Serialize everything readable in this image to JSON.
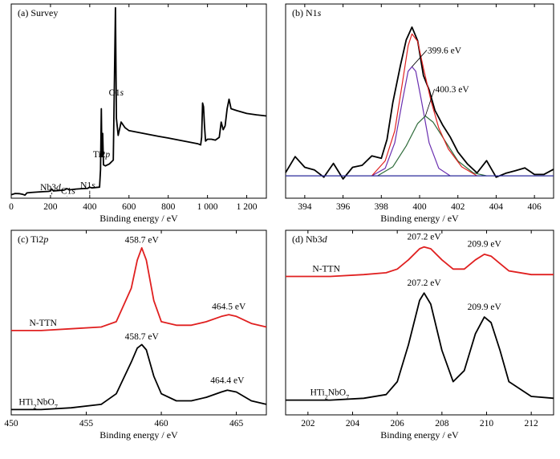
{
  "chart_data": [
    {
      "type": "line",
      "title": "(a) Survey",
      "xlabel": "Binding energy / eV",
      "xlim": [
        0,
        1300
      ],
      "xticks": [
        {
          "value": 0,
          "label": "0"
        },
        {
          "value": 200,
          "label": "200"
        },
        {
          "value": 400,
          "label": "400"
        },
        {
          "value": 600,
          "label": "600"
        },
        {
          "value": 800,
          "label": "800"
        },
        {
          "value": 1000,
          "label": "1 000"
        },
        {
          "value": 1200,
          "label": "1 200"
        }
      ],
      "annotations": [
        {
          "text": "O1s",
          "x": 531,
          "label_x": 535,
          "label_y": 540
        },
        {
          "text": "Ti2p",
          "x": 459,
          "label_x": 460,
          "label_y": 215
        },
        {
          "text": "Nb3d",
          "x": 207,
          "label_x": 200,
          "label_y": 42,
          "arrow_to_y": 20
        },
        {
          "text": "C1s",
          "x": 285,
          "label_x": 290,
          "label_y": 24,
          "arrow_to_y": 9
        },
        {
          "text": "N1s",
          "x": 400,
          "label_x": 390,
          "label_y": 52,
          "arrow_to_y": 20
        }
      ],
      "series": [
        {
          "color": "#000000",
          "points": [
            [
              0,
              18
            ],
            [
              20,
              25
            ],
            [
              40,
              24
            ],
            [
              60,
              20
            ],
            [
              70,
              16
            ],
            [
              80,
              28
            ],
            [
              100,
              30
            ],
            [
              130,
              32
            ],
            [
              160,
              34
            ],
            [
              190,
              36
            ],
            [
              200,
              38
            ],
            [
              207,
              48
            ],
            [
              215,
              38
            ],
            [
              240,
              40
            ],
            [
              270,
              43
            ],
            [
              285,
              50
            ],
            [
              295,
              44
            ],
            [
              330,
              48
            ],
            [
              360,
              50
            ],
            [
              390,
              52
            ],
            [
              400,
              58
            ],
            [
              410,
              54
            ],
            [
              430,
              56
            ],
            [
              450,
              58
            ],
            [
              455,
              150
            ],
            [
              459,
              470
            ],
            [
              462,
              220
            ],
            [
              466,
              340
            ],
            [
              470,
              175
            ],
            [
              480,
              170
            ],
            [
              500,
              180
            ],
            [
              520,
              200
            ],
            [
              531,
              1000
            ],
            [
              536,
              420
            ],
            [
              545,
              330
            ],
            [
              560,
              400
            ],
            [
              580,
              370
            ],
            [
              600,
              355
            ],
            [
              650,
              345
            ],
            [
              700,
              335
            ],
            [
              750,
              325
            ],
            [
              800,
              316
            ],
            [
              850,
              306
            ],
            [
              900,
              296
            ],
            [
              950,
              286
            ],
            [
              965,
              280
            ],
            [
              970,
              320
            ],
            [
              975,
              500
            ],
            [
              980,
              480
            ],
            [
              985,
              380
            ],
            [
              990,
              300
            ],
            [
              1000,
              310
            ],
            [
              1020,
              310
            ],
            [
              1040,
              305
            ],
            [
              1060,
              320
            ],
            [
              1070,
              400
            ],
            [
              1080,
              360
            ],
            [
              1090,
              380
            ],
            [
              1100,
              470
            ],
            [
              1110,
              520
            ],
            [
              1120,
              470
            ],
            [
              1150,
              460
            ],
            [
              1200,
              445
            ],
            [
              1250,
              438
            ],
            [
              1300,
              432
            ]
          ]
        }
      ]
    },
    {
      "type": "line",
      "title": "(b) N1s",
      "xlabel": "Binding energy / eV",
      "xlim": [
        393,
        407
      ],
      "ylim": [
        -0.15,
        1.15
      ],
      "xticks": [
        {
          "value": 394,
          "label": "394"
        },
        {
          "value": 396,
          "label": "396"
        },
        {
          "value": 398,
          "label": "398"
        },
        {
          "value": 400,
          "label": "400"
        },
        {
          "value": 402,
          "label": "402"
        },
        {
          "value": 404,
          "label": "404"
        },
        {
          "value": 406,
          "label": "406"
        }
      ],
      "annotations": [
        {
          "text": "399.6 eV",
          "x": 399.6,
          "y": 0.73,
          "label_x": 401.3,
          "label_y": 0.82
        },
        {
          "text": "400.3 eV",
          "x": 400.3,
          "y": 0.4,
          "label_x": 401.7,
          "label_y": 0.56
        }
      ],
      "series": [
        {
          "color": "#000000",
          "points": [
            [
              393,
              0.05
            ],
            [
              393.5,
              0.1
            ],
            [
              394,
              0.02
            ],
            [
              394.5,
              0.08
            ],
            [
              395,
              0.03
            ],
            [
              395.5,
              0.07
            ],
            [
              396,
              0.02
            ],
            [
              396.5,
              0.06
            ],
            [
              397,
              0.05
            ],
            [
              397.5,
              0.1
            ],
            [
              398,
              0.15
            ],
            [
              398.3,
              0.25
            ],
            [
              398.6,
              0.45
            ],
            [
              399,
              0.7
            ],
            [
              399.3,
              0.88
            ],
            [
              399.6,
              1.0
            ],
            [
              399.9,
              0.92
            ],
            [
              400.2,
              0.7
            ],
            [
              400.5,
              0.55
            ],
            [
              400.8,
              0.42
            ],
            [
              401.2,
              0.3
            ],
            [
              401.6,
              0.22
            ],
            [
              402,
              0.15
            ],
            [
              402.5,
              0.1
            ],
            [
              403,
              0.06
            ],
            [
              403.5,
              0.07
            ],
            [
              404,
              0.03
            ],
            [
              404.5,
              0.05
            ],
            [
              405,
              0.02
            ],
            [
              405.5,
              0.04
            ],
            [
              406,
              0.03
            ],
            [
              406.5,
              0.05
            ],
            [
              407,
              0.02
            ]
          ]
        },
        {
          "color": "#6a2fb0",
          "points": [
            [
              397.5,
              0.0
            ],
            [
              398.2,
              0.05
            ],
            [
              398.7,
              0.22
            ],
            [
              399.1,
              0.5
            ],
            [
              399.4,
              0.7
            ],
            [
              399.6,
              0.73
            ],
            [
              399.8,
              0.7
            ],
            [
              400.1,
              0.5
            ],
            [
              400.5,
              0.22
            ],
            [
              401,
              0.05
            ],
            [
              401.6,
              0.0
            ]
          ]
        },
        {
          "color": "#2e6b3a",
          "points": [
            [
              397.8,
              0.0
            ],
            [
              398.6,
              0.06
            ],
            [
              399.3,
              0.2
            ],
            [
              399.9,
              0.35
            ],
            [
              400.3,
              0.4
            ],
            [
              400.7,
              0.36
            ],
            [
              401.3,
              0.24
            ],
            [
              402,
              0.1
            ],
            [
              402.8,
              0.02
            ],
            [
              403.5,
              0.0
            ]
          ]
        },
        {
          "color": "#e02020",
          "points": [
            [
              397.5,
              0.0
            ],
            [
              398.2,
              0.1
            ],
            [
              398.7,
              0.3
            ],
            [
              399.1,
              0.62
            ],
            [
              399.4,
              0.87
            ],
            [
              399.6,
              0.95
            ],
            [
              399.9,
              0.9
            ],
            [
              400.2,
              0.72
            ],
            [
              400.6,
              0.5
            ],
            [
              401,
              0.32
            ],
            [
              401.5,
              0.18
            ],
            [
              402.2,
              0.06
            ],
            [
              403,
              0.0
            ]
          ]
        },
        {
          "color": "#2a2a9a",
          "points": [
            [
              393,
              0.0
            ],
            [
              407,
              0.0
            ]
          ]
        }
      ]
    },
    {
      "type": "line",
      "title": "(c) Ti2p",
      "xlabel": "Binding energy / eV",
      "xlim": [
        450,
        467
      ],
      "xticks": [
        {
          "value": 450,
          "label": "450"
        },
        {
          "value": 455,
          "label": "455"
        },
        {
          "value": 460,
          "label": "460"
        },
        {
          "value": 465,
          "label": "465"
        }
      ],
      "series": [
        {
          "name": "N-TTN",
          "color": "#e02020",
          "label_x": 451.2,
          "points": [
            [
              450,
              0.48
            ],
            [
              452,
              0.48
            ],
            [
              454,
              0.49
            ],
            [
              456,
              0.5
            ],
            [
              457,
              0.53
            ],
            [
              458,
              0.72
            ],
            [
              458.4,
              0.88
            ],
            [
              458.7,
              0.95
            ],
            [
              459,
              0.88
            ],
            [
              459.5,
              0.65
            ],
            [
              460,
              0.53
            ],
            [
              461,
              0.51
            ],
            [
              462,
              0.51
            ],
            [
              463,
              0.53
            ],
            [
              464,
              0.56
            ],
            [
              464.5,
              0.57
            ],
            [
              465,
              0.56
            ],
            [
              466,
              0.52
            ],
            [
              467,
              0.5
            ]
          ]
        },
        {
          "name": "HTi₂NbO₇",
          "color": "#000000",
          "label_x": 450.5,
          "points": [
            [
              450,
              0.03
            ],
            [
              452,
              0.03
            ],
            [
              454,
              0.04
            ],
            [
              456,
              0.06
            ],
            [
              457,
              0.12
            ],
            [
              458,
              0.3
            ],
            [
              458.4,
              0.38
            ],
            [
              458.7,
              0.4
            ],
            [
              459,
              0.37
            ],
            [
              459.5,
              0.22
            ],
            [
              460,
              0.12
            ],
            [
              461,
              0.08
            ],
            [
              462,
              0.08
            ],
            [
              463,
              0.1
            ],
            [
              464,
              0.13
            ],
            [
              464.4,
              0.14
            ],
            [
              465,
              0.13
            ],
            [
              466,
              0.08
            ],
            [
              467,
              0.06
            ]
          ]
        }
      ],
      "annotations": [
        {
          "text": "458.7 eV",
          "x": 458.7,
          "label_y": 0.98
        },
        {
          "text": "464.5 eV",
          "x": 464.5,
          "label_y": 0.6
        },
        {
          "text": "458.7 eV",
          "x": 458.7,
          "label_y": 0.43
        },
        {
          "text": "464.4 eV",
          "x": 464.4,
          "label_y": 0.18
        }
      ]
    },
    {
      "type": "line",
      "title": "(d) Nb3d",
      "xlabel": "Binding energy / eV",
      "xlim": [
        201,
        213
      ],
      "xticks": [
        {
          "value": 202,
          "label": "202"
        },
        {
          "value": 204,
          "label": "204"
        },
        {
          "value": 206,
          "label": "206"
        },
        {
          "value": 208,
          "label": "208"
        },
        {
          "value": 210,
          "label": "210"
        },
        {
          "value": 212,
          "label": "212"
        }
      ],
      "series": [
        {
          "name": "N-TTN",
          "color": "#e02020",
          "label_x": 202.2,
          "points": [
            [
              201,
              0.75
            ],
            [
              203,
              0.75
            ],
            [
              204.5,
              0.76
            ],
            [
              205.5,
              0.77
            ],
            [
              206,
              0.79
            ],
            [
              206.5,
              0.84
            ],
            [
              207,
              0.9
            ],
            [
              207.2,
              0.91
            ],
            [
              207.5,
              0.9
            ],
            [
              208,
              0.84
            ],
            [
              208.5,
              0.79
            ],
            [
              209,
              0.79
            ],
            [
              209.5,
              0.84
            ],
            [
              209.9,
              0.87
            ],
            [
              210.2,
              0.86
            ],
            [
              210.6,
              0.82
            ],
            [
              211,
              0.78
            ],
            [
              212,
              0.76
            ],
            [
              213,
              0.76
            ]
          ]
        },
        {
          "name": "HTi₂NbO₇",
          "color": "#000000",
          "label_x": 202.1,
          "points": [
            [
              201,
              0.08
            ],
            [
              203,
              0.08
            ],
            [
              204.5,
              0.09
            ],
            [
              205.5,
              0.11
            ],
            [
              206,
              0.18
            ],
            [
              206.5,
              0.38
            ],
            [
              207,
              0.62
            ],
            [
              207.2,
              0.66
            ],
            [
              207.5,
              0.6
            ],
            [
              208,
              0.35
            ],
            [
              208.5,
              0.18
            ],
            [
              209,
              0.24
            ],
            [
              209.5,
              0.44
            ],
            [
              209.9,
              0.53
            ],
            [
              210.2,
              0.5
            ],
            [
              210.6,
              0.35
            ],
            [
              211,
              0.18
            ],
            [
              212,
              0.1
            ],
            [
              213,
              0.09
            ]
          ]
        }
      ],
      "annotations": [
        {
          "text": "207.2 eV",
          "x": 207.2,
          "label_y": 0.95
        },
        {
          "text": "209.9 eV",
          "x": 209.9,
          "label_y": 0.91
        },
        {
          "text": "207.2 eV",
          "x": 207.2,
          "label_y": 0.7
        },
        {
          "text": "209.9 eV",
          "x": 209.9,
          "label_y": 0.57
        }
      ]
    }
  ]
}
